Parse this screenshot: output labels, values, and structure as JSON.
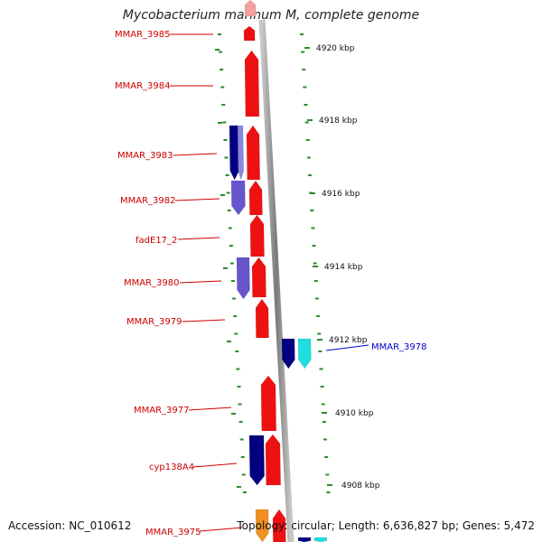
{
  "title": "Mycobacterium marinum M, complete genome",
  "footer": {
    "accession": "Accession: NC_010612",
    "summary": "Topology: circular; Length: 6,636,827 bp; Genes: 5,472"
  },
  "colors": {
    "backbone": "#8a8a8a",
    "tick": "#2e8b2e",
    "forward_label": "#cc0000",
    "reverse_label": "#0000cc",
    "scale_label": "#111111"
  },
  "scale": {
    "ticks": [
      {
        "label": "4920 kbp"
      },
      {
        "label": "4918 kbp"
      },
      {
        "label": "4916 kbp"
      },
      {
        "label": "4914 kbp"
      },
      {
        "label": "4912 kbp"
      },
      {
        "label": "4910 kbp"
      },
      {
        "label": "4908 kbp"
      }
    ]
  },
  "gene_labels": [
    {
      "text": "MMAR_3985",
      "strand": "forward"
    },
    {
      "text": "MMAR_3984",
      "strand": "forward"
    },
    {
      "text": "MMAR_3983",
      "strand": "forward"
    },
    {
      "text": "MMAR_3982",
      "strand": "forward"
    },
    {
      "text": "fadE17_2",
      "strand": "forward"
    },
    {
      "text": "MMAR_3980",
      "strand": "forward"
    },
    {
      "text": "MMAR_3979",
      "strand": "forward"
    },
    {
      "text": "MMAR_3978",
      "strand": "reverse"
    },
    {
      "text": "MMAR_3977",
      "strand": "forward"
    },
    {
      "text": "cyp138A4",
      "strand": "forward"
    },
    {
      "text": "MMAR_3975",
      "strand": "forward"
    }
  ]
}
